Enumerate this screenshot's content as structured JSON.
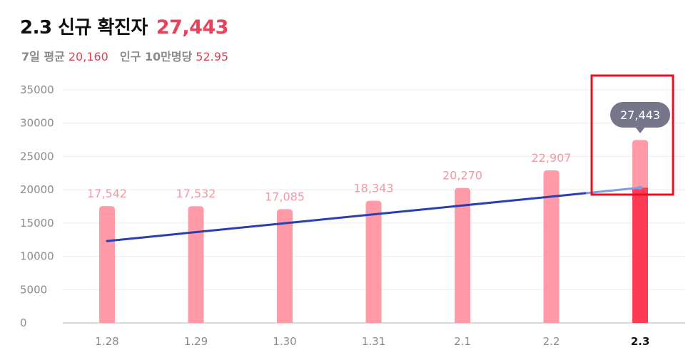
{
  "header": {
    "title": "2.3 신규 확진자",
    "value": "27,443",
    "avg_label": "7일 평균",
    "avg_value": "20,160",
    "per_label": "인구 10만명당",
    "per_value": "52.95"
  },
  "colors": {
    "bar": "#ff9aa6",
    "bar_highlight": "#ff3a55",
    "trend_line": "#2a3eb0",
    "trend_line_tail": "#7d9ce8",
    "tooltip_bg": "#76768a",
    "highlight_box": "#e8101e",
    "bar_label": "#ee9aa3"
  },
  "chart_data": {
    "type": "bar",
    "categories": [
      "1.28",
      "1.29",
      "1.30",
      "1.31",
      "2.1",
      "2.2",
      "2.3"
    ],
    "values": [
      17542,
      17532,
      17085,
      18343,
      20270,
      22907,
      27443
    ],
    "value_labels": [
      "17,542",
      "17,532",
      "17,085",
      "18,343",
      "20,270",
      "22,907",
      "27,443"
    ],
    "highlight_index": 6,
    "trend_line": {
      "type": "line",
      "start": {
        "category": "1.28",
        "value": 12300
      },
      "end": {
        "category": "2.3",
        "value": 20300
      }
    },
    "yticks": [
      "0",
      "5000",
      "10000",
      "15000",
      "20000",
      "25000",
      "30000",
      "35000"
    ],
    "ylim": [
      0,
      35000
    ],
    "grid": true,
    "tooltip": "27,443"
  }
}
